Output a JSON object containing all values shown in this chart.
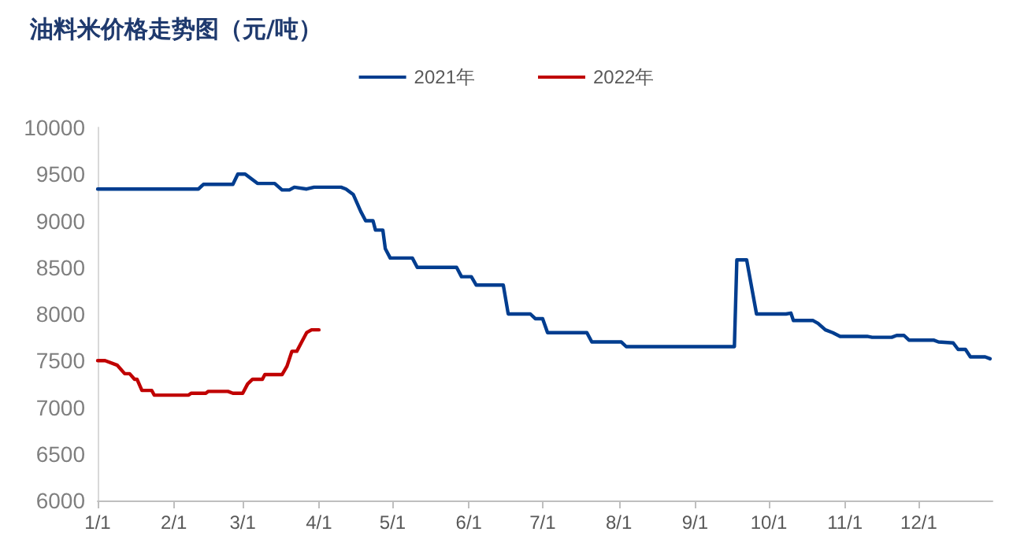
{
  "chart_data": {
    "type": "line",
    "title": "油料米价格走势图（元/吨）",
    "xlim": [
      "--01-01",
      "--12-31"
    ],
    "xticks": [
      {
        "value": "--01-01",
        "label": "1/1"
      },
      {
        "value": "--02-01",
        "label": "2/1"
      },
      {
        "value": "--03-01",
        "label": "3/1"
      },
      {
        "value": "--04-01",
        "label": "4/1"
      },
      {
        "value": "--05-01",
        "label": "5/1"
      },
      {
        "value": "--06-01",
        "label": "6/1"
      },
      {
        "value": "--07-01",
        "label": "7/1"
      },
      {
        "value": "--08-01",
        "label": "8/1"
      },
      {
        "value": "--09-01",
        "label": "9/1"
      },
      {
        "value": "--10-01",
        "label": "10/1"
      },
      {
        "value": "--11-01",
        "label": "11/1"
      },
      {
        "value": "--12-01",
        "label": "12/1"
      }
    ],
    "ylim": [
      6000,
      10000
    ],
    "yticks": [
      6000,
      6500,
      7000,
      7500,
      8000,
      8500,
      9000,
      9500,
      10000
    ],
    "grid": false,
    "legend": "top",
    "marker": "none",
    "line_style": "solid",
    "series": [
      {
        "name": "2021年",
        "color": "#003d8f",
        "x": [
          "--01-01",
          "--02-11",
          "--02-13",
          "--02-25",
          "--02-27",
          "--03-02",
          "--03-07",
          "--03-14",
          "--03-17",
          "--03-20",
          "--03-22",
          "--03-27",
          "--03-30",
          "--04-10",
          "--04-12",
          "--04-15",
          "--04-18",
          "--04-20",
          "--04-23",
          "--04-24",
          "--04-27",
          "--04-28",
          "--04-30",
          "--05-09",
          "--05-11",
          "--05-27",
          "--05-29",
          "--06-02",
          "--06-04",
          "--06-15",
          "--06-17",
          "--06-26",
          "--06-28",
          "--07-01",
          "--07-03",
          "--07-19",
          "--07-21",
          "--08-02",
          "--08-04",
          "--09-17",
          "--09-18",
          "--09-22",
          "--09-26",
          "--10-08",
          "--10-10",
          "--10-11",
          "--10-19",
          "--10-21",
          "--10-24",
          "--10-27",
          "--10-30",
          "--11-10",
          "--11-12",
          "--11-20",
          "--11-22",
          "--11-25",
          "--11-27",
          "--12-07",
          "--12-09",
          "--12-15",
          "--12-17",
          "--12-20",
          "--12-22",
          "--12-28",
          "--12-30"
        ],
        "values": [
          9340,
          9340,
          9390,
          9390,
          9500,
          9500,
          9400,
          9400,
          9330,
          9330,
          9360,
          9340,
          9360,
          9360,
          9340,
          9280,
          9100,
          9000,
          9000,
          8900,
          8900,
          8700,
          8600,
          8600,
          8500,
          8500,
          8400,
          8400,
          8310,
          8310,
          8000,
          8000,
          7950,
          7950,
          7800,
          7800,
          7700,
          7700,
          7650,
          7650,
          8580,
          8580,
          8000,
          8000,
          8010,
          7930,
          7930,
          7900,
          7830,
          7800,
          7760,
          7760,
          7750,
          7750,
          7770,
          7770,
          7720,
          7720,
          7700,
          7690,
          7620,
          7620,
          7540,
          7540,
          7520
        ]
      },
      {
        "name": "2022年",
        "color": "#c00000",
        "x": [
          "--01-01",
          "--01-04",
          "--01-09",
          "--01-12",
          "--01-14",
          "--01-16",
          "--01-17",
          "--01-19",
          "--01-23",
          "--01-24",
          "--02-07",
          "--02-08",
          "--02-14",
          "--02-15",
          "--02-23",
          "--02-25",
          "--03-01",
          "--03-03",
          "--03-05",
          "--03-09",
          "--03-10",
          "--03-17",
          "--03-19",
          "--03-21",
          "--03-23",
          "--03-25",
          "--03-27",
          "--03-29",
          "--04-01"
        ],
        "values": [
          7500,
          7500,
          7450,
          7360,
          7360,
          7300,
          7300,
          7180,
          7180,
          7130,
          7130,
          7150,
          7150,
          7170,
          7170,
          7150,
          7150,
          7250,
          7300,
          7300,
          7350,
          7350,
          7440,
          7600,
          7600,
          7700,
          7800,
          7830,
          7830
        ]
      }
    ]
  }
}
